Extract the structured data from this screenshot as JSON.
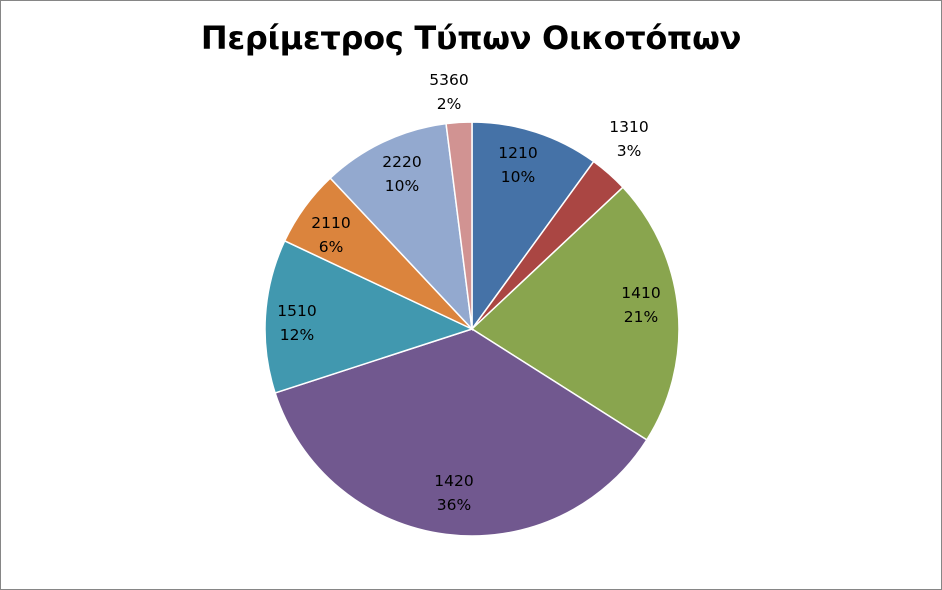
{
  "chart_data": {
    "type": "pie",
    "title": "Περίμετρος Τύπων Οικοτόπων",
    "categories": [
      "1210",
      "1310",
      "1410",
      "1420",
      "1510",
      "2110",
      "2220",
      "5360"
    ],
    "values": [
      10,
      3,
      21,
      36,
      12,
      6,
      10,
      2
    ],
    "value_labels": [
      "10%",
      "3%",
      "21%",
      "36%",
      "12%",
      "6%",
      "10%",
      "2%"
    ],
    "colors": [
      "#4572A7",
      "#AA4643",
      "#89A54E",
      "#71588F",
      "#4198AF",
      "#DB843D",
      "#93A9CF",
      "#D19392"
    ],
    "legend": "none"
  }
}
